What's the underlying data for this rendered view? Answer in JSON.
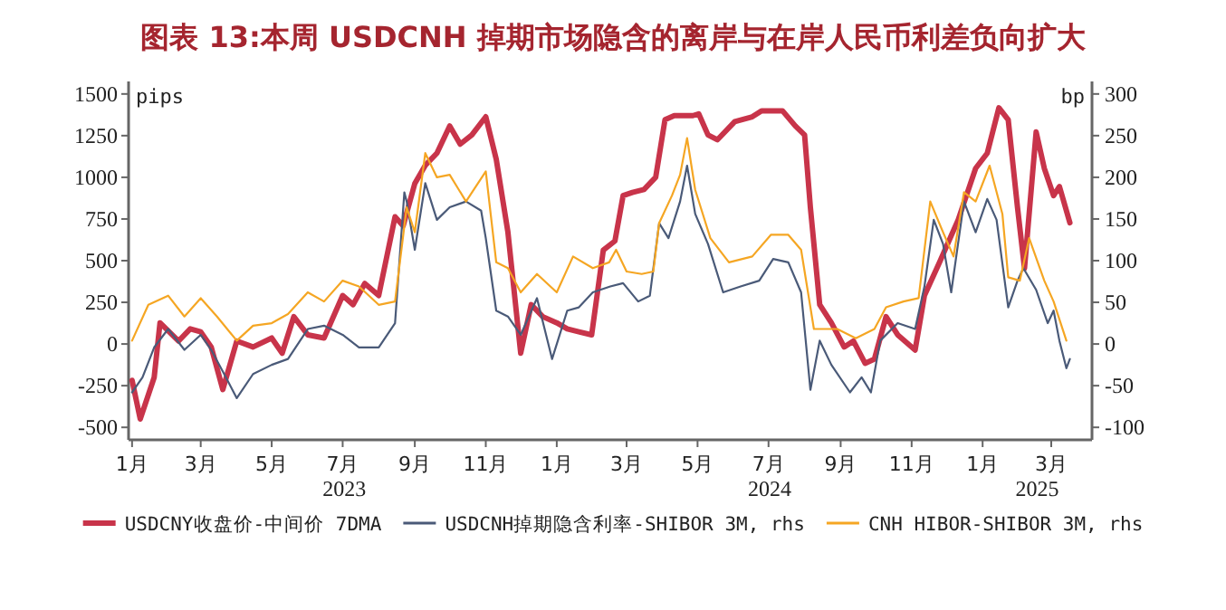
{
  "chart_data": {
    "type": "line",
    "title": "图表 13:本周 USDCNH 掉期市场隐含的离岸与在岸人民币利差负向扩大",
    "ylabel": "pips",
    "y2label": "bp",
    "xlim": [
      "2022-12-29",
      "2025-04-05"
    ],
    "ylim": [
      -575,
      1575
    ],
    "y2lim": [
      -115,
      315
    ],
    "yticks": [
      -500,
      -250,
      0,
      250,
      500,
      750,
      1000,
      1250,
      1500
    ],
    "y2ticks": [
      -100,
      -50,
      0,
      50,
      100,
      150,
      200,
      250,
      300
    ],
    "xticks": [
      {
        "value": "2023-01-01",
        "label": "1月"
      },
      {
        "value": "2023-03-01",
        "label": "3月"
      },
      {
        "value": "2023-05-01",
        "label": "5月"
      },
      {
        "value": "2023-07-01",
        "label": "7月"
      },
      {
        "value": "2023-09-01",
        "label": "9月"
      },
      {
        "value": "2023-11-01",
        "label": "11月"
      },
      {
        "value": "2024-01-01",
        "label": "1月"
      },
      {
        "value": "2024-03-01",
        "label": "3月"
      },
      {
        "value": "2024-05-01",
        "label": "5月"
      },
      {
        "value": "2024-07-01",
        "label": "7月"
      },
      {
        "value": "2024-09-01",
        "label": "9月"
      },
      {
        "value": "2024-11-01",
        "label": "11月"
      },
      {
        "value": "2025-01-01",
        "label": "1月"
      },
      {
        "value": "2025-03-01",
        "label": "3月"
      }
    ],
    "annotations": [
      "2023",
      "2024",
      "2025"
    ],
    "legend": "bottom",
    "grid": false,
    "series": [
      {
        "name": "USDCNY收盘价-中间价 7DMA",
        "color": "#c8344a",
        "x": [
          "2023-01-01",
          "2023-01-08",
          "2023-01-20",
          "2023-01-25",
          "2023-02-10",
          "2023-02-20",
          "2023-03-01",
          "2023-03-10",
          "2023-03-20",
          "2023-04-01",
          "2023-04-15",
          "2023-05-01",
          "2023-05-10",
          "2023-05-20",
          "2023-06-01",
          "2023-06-15",
          "2023-07-01",
          "2023-07-10",
          "2023-07-20",
          "2023-08-01",
          "2023-08-15",
          "2023-08-22",
          "2023-09-01",
          "2023-09-10",
          "2023-09-20",
          "2023-10-01",
          "2023-10-10",
          "2023-10-20",
          "2023-11-01",
          "2023-11-10",
          "2023-11-20",
          "2023-12-01",
          "2023-12-10",
          "2023-12-20",
          "2024-01-01",
          "2024-01-10",
          "2024-01-20",
          "2024-01-31",
          "2024-02-10",
          "2024-02-20",
          "2024-02-27",
          "2024-03-06",
          "2024-03-16",
          "2024-03-26",
          "2024-04-03",
          "2024-04-11",
          "2024-04-27",
          "2024-05-02",
          "2024-05-10",
          "2024-05-18",
          "2024-06-02",
          "2024-06-17",
          "2024-06-25",
          "2024-07-13",
          "2024-07-24",
          "2024-08-01",
          "2024-08-06",
          "2024-08-14",
          "2024-08-24",
          "2024-09-04",
          "2024-09-12",
          "2024-09-22",
          "2024-09-30",
          "2024-10-10",
          "2024-10-20",
          "2024-11-04",
          "2024-11-12",
          "2024-11-25",
          "2024-12-11",
          "2024-12-26",
          "2025-01-05",
          "2025-01-15",
          "2025-01-23",
          "2025-01-31",
          "2025-02-06",
          "2025-02-16",
          "2025-02-23",
          "2025-03-03",
          "2025-03-08",
          "2025-03-17"
        ],
        "values": [
          -218,
          -450,
          -200,
          127,
          18,
          91,
          73,
          -18,
          -273,
          18,
          -18,
          36,
          -55,
          164,
          55,
          36,
          291,
          236,
          363,
          291,
          763,
          709,
          963,
          1072,
          1145,
          1308,
          1199,
          1254,
          1363,
          1108,
          672,
          -55,
          236,
          164,
          127,
          91,
          73,
          55,
          563,
          618,
          890,
          909,
          927,
          1000,
          1345,
          1370,
          1370,
          1381,
          1254,
          1225,
          1334,
          1363,
          1399,
          1399,
          1308,
          1254,
          818,
          236,
          127,
          -18,
          18,
          -116,
          -91,
          164,
          55,
          -36,
          291,
          491,
          745,
          1054,
          1145,
          1417,
          1345,
          818,
          454,
          1272,
          1054,
          890,
          945,
          727
        ]
      },
      {
        "name": "USDCNH掉期隐含利率-SHIBOR 3M, rhs",
        "color": "#4a5a78",
        "axis": "y2",
        "x": [
          "2023-01-01",
          "2023-01-10",
          "2023-01-20",
          "2023-02-01",
          "2023-02-15",
          "2023-03-01",
          "2023-03-10",
          "2023-03-20",
          "2023-04-01",
          "2023-04-15",
          "2023-05-01",
          "2023-05-15",
          "2023-06-01",
          "2023-06-15",
          "2023-07-01",
          "2023-07-15",
          "2023-08-01",
          "2023-08-15",
          "2023-08-23",
          "2023-08-25",
          "2023-09-01",
          "2023-09-10",
          "2023-09-20",
          "2023-10-01",
          "2023-10-15",
          "2023-10-28",
          "2023-11-01",
          "2023-11-10",
          "2023-11-20",
          "2023-12-01",
          "2023-12-15",
          "2023-12-28",
          "2024-01-10",
          "2024-01-20",
          "2024-02-01",
          "2024-02-16",
          "2024-02-27",
          "2024-03-11",
          "2024-03-21",
          "2024-03-29",
          "2024-04-06",
          "2024-04-16",
          "2024-04-22",
          "2024-04-29",
          "2024-05-10",
          "2024-05-23",
          "2024-06-07",
          "2024-06-23",
          "2024-07-05",
          "2024-07-18",
          "2024-07-29",
          "2024-08-06",
          "2024-08-14",
          "2024-08-24",
          "2024-09-09",
          "2024-09-19",
          "2024-09-27",
          "2024-10-05",
          "2024-10-20",
          "2024-11-04",
          "2024-11-12",
          "2024-11-20",
          "2024-11-28",
          "2024-12-05",
          "2024-12-16",
          "2024-12-26",
          "2025-01-05",
          "2025-01-13",
          "2025-01-23",
          "2025-01-31",
          "2025-02-05",
          "2025-02-16",
          "2025-02-26",
          "2025-03-03",
          "2025-03-08",
          "2025-03-14",
          "2025-03-17"
        ],
        "values": [
          -58,
          -40,
          -4,
          18,
          -7,
          11,
          -7,
          -33,
          -65,
          -36,
          -25,
          -18,
          18,
          22,
          11,
          -4,
          -4,
          25,
          182,
          171,
          113,
          193,
          149,
          164,
          171,
          160,
          127,
          40,
          33,
          11,
          55,
          -18,
          40,
          44,
          62,
          69,
          73,
          51,
          58,
          145,
          127,
          171,
          214,
          156,
          120,
          62,
          69,
          76,
          102,
          98,
          62,
          -55,
          4,
          -25,
          -58,
          -40,
          -58,
          4,
          25,
          18,
          69,
          149,
          120,
          62,
          171,
          134,
          174,
          149,
          44,
          76,
          91,
          65,
          25,
          40,
          4,
          -29,
          -18
        ]
      },
      {
        "name": "CNH HIBOR-SHIBOR 3M, rhs",
        "color": "#f5a623",
        "axis": "y2",
        "x": [
          "2023-01-01",
          "2023-01-15",
          "2023-02-01",
          "2023-02-15",
          "2023-03-01",
          "2023-03-15",
          "2023-04-01",
          "2023-04-15",
          "2023-05-01",
          "2023-05-15",
          "2023-06-01",
          "2023-06-15",
          "2023-07-01",
          "2023-07-15",
          "2023-08-01",
          "2023-08-15",
          "2023-08-25",
          "2023-09-01",
          "2023-09-10",
          "2023-09-20",
          "2023-10-01",
          "2023-10-15",
          "2023-11-01",
          "2023-11-10",
          "2023-11-20",
          "2023-12-01",
          "2023-12-15",
          "2024-01-01",
          "2024-01-15",
          "2024-02-01",
          "2024-02-15",
          "2024-02-21",
          "2024-03-01",
          "2024-03-14",
          "2024-03-24",
          "2024-03-29",
          "2024-04-09",
          "2024-04-16",
          "2024-04-22",
          "2024-04-29",
          "2024-05-12",
          "2024-05-28",
          "2024-06-17",
          "2024-07-03",
          "2024-07-18",
          "2024-07-29",
          "2024-08-09",
          "2024-08-29",
          "2024-09-14",
          "2024-09-30",
          "2024-10-10",
          "2024-10-25",
          "2024-11-07",
          "2024-11-17",
          "2024-11-28",
          "2024-12-07",
          "2024-12-16",
          "2024-12-26",
          "2025-01-07",
          "2025-01-18",
          "2025-01-23",
          "2025-02-02",
          "2025-02-10",
          "2025-02-23",
          "2025-03-03",
          "2025-03-14"
        ],
        "values": [
          4,
          47,
          58,
          33,
          55,
          33,
          4,
          22,
          25,
          36,
          62,
          51,
          76,
          69,
          47,
          51,
          164,
          134,
          229,
          200,
          203,
          171,
          207,
          98,
          91,
          62,
          84,
          62,
          105,
          91,
          98,
          113,
          87,
          84,
          87,
          145,
          178,
          203,
          247,
          185,
          127,
          98,
          105,
          131,
          131,
          113,
          18,
          18,
          7,
          18,
          44,
          51,
          55,
          171,
          134,
          105,
          182,
          171,
          214,
          156,
          80,
          76,
          127,
          76,
          51,
          4
        ]
      }
    ]
  }
}
